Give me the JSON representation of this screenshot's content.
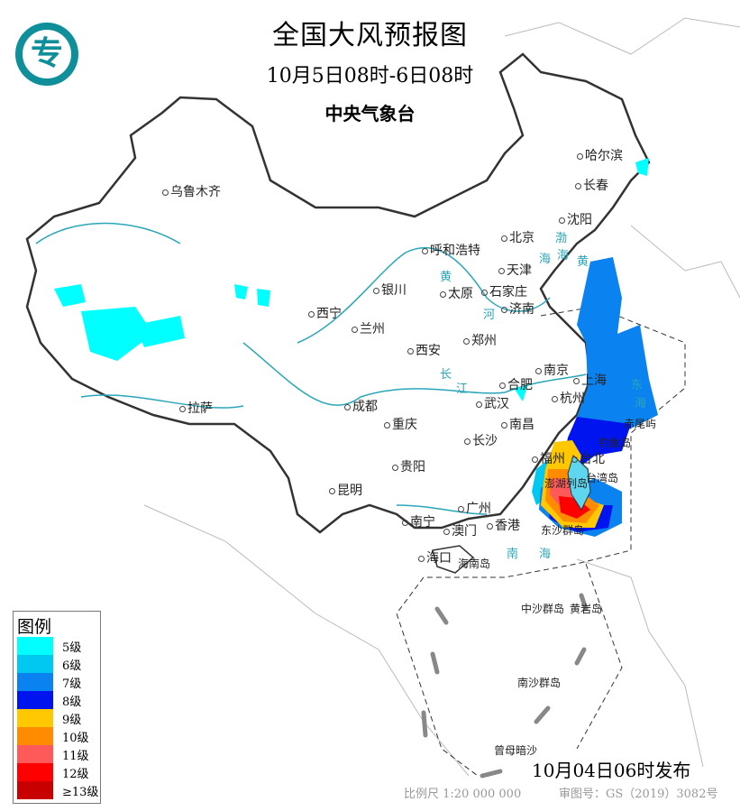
{
  "header": {
    "title": "全国大风预报图",
    "period": "10月5日08时-6日08时",
    "agency": "中央气象台"
  },
  "legend": {
    "title": "图例",
    "items": [
      {
        "label": "5级",
        "color": "#00ffff"
      },
      {
        "label": "6级",
        "color": "#00c8f0"
      },
      {
        "label": "7级",
        "color": "#0a82f0"
      },
      {
        "label": "8级",
        "color": "#0014f0"
      },
      {
        "label": "9级",
        "color": "#ffc800"
      },
      {
        "label": "10级",
        "color": "#ff8c00"
      },
      {
        "label": "11级",
        "color": "#ff5a5a"
      },
      {
        "label": "12级",
        "color": "#ff0000"
      },
      {
        "label": "≥13级",
        "color": "#c80000"
      }
    ]
  },
  "footer": {
    "issued": "10月04日06时发布",
    "scale": "比例尺 1:20 000 000",
    "approval": "审图号：GS（2019）3082号"
  },
  "cities": [
    "乌鲁木齐",
    "哈尔滨",
    "长春",
    "沈阳",
    "北京",
    "天津",
    "呼和浩特",
    "石家庄",
    "太原",
    "济南",
    "银川",
    "西宁",
    "兰州",
    "郑州",
    "西安",
    "合肥",
    "南京",
    "上海",
    "杭州",
    "武汉",
    "成都",
    "重庆",
    "长沙",
    "南昌",
    "拉萨",
    "贵阳",
    "昆明",
    "福州",
    "台北",
    "广州",
    "南宁",
    "澳门",
    "香港",
    "海口"
  ],
  "islands": [
    "台湾岛",
    "澎湖列岛",
    "海南岛",
    "东沙群岛",
    "钓鱼岛",
    "赤尾屿",
    "中沙群岛",
    "黄岩岛",
    "南沙群岛",
    "曾母暗沙"
  ],
  "water_labels": [
    "黄",
    "河",
    "长",
    "江",
    "渤",
    "海",
    "黄",
    "海",
    "东",
    "海",
    "南",
    "海"
  ]
}
